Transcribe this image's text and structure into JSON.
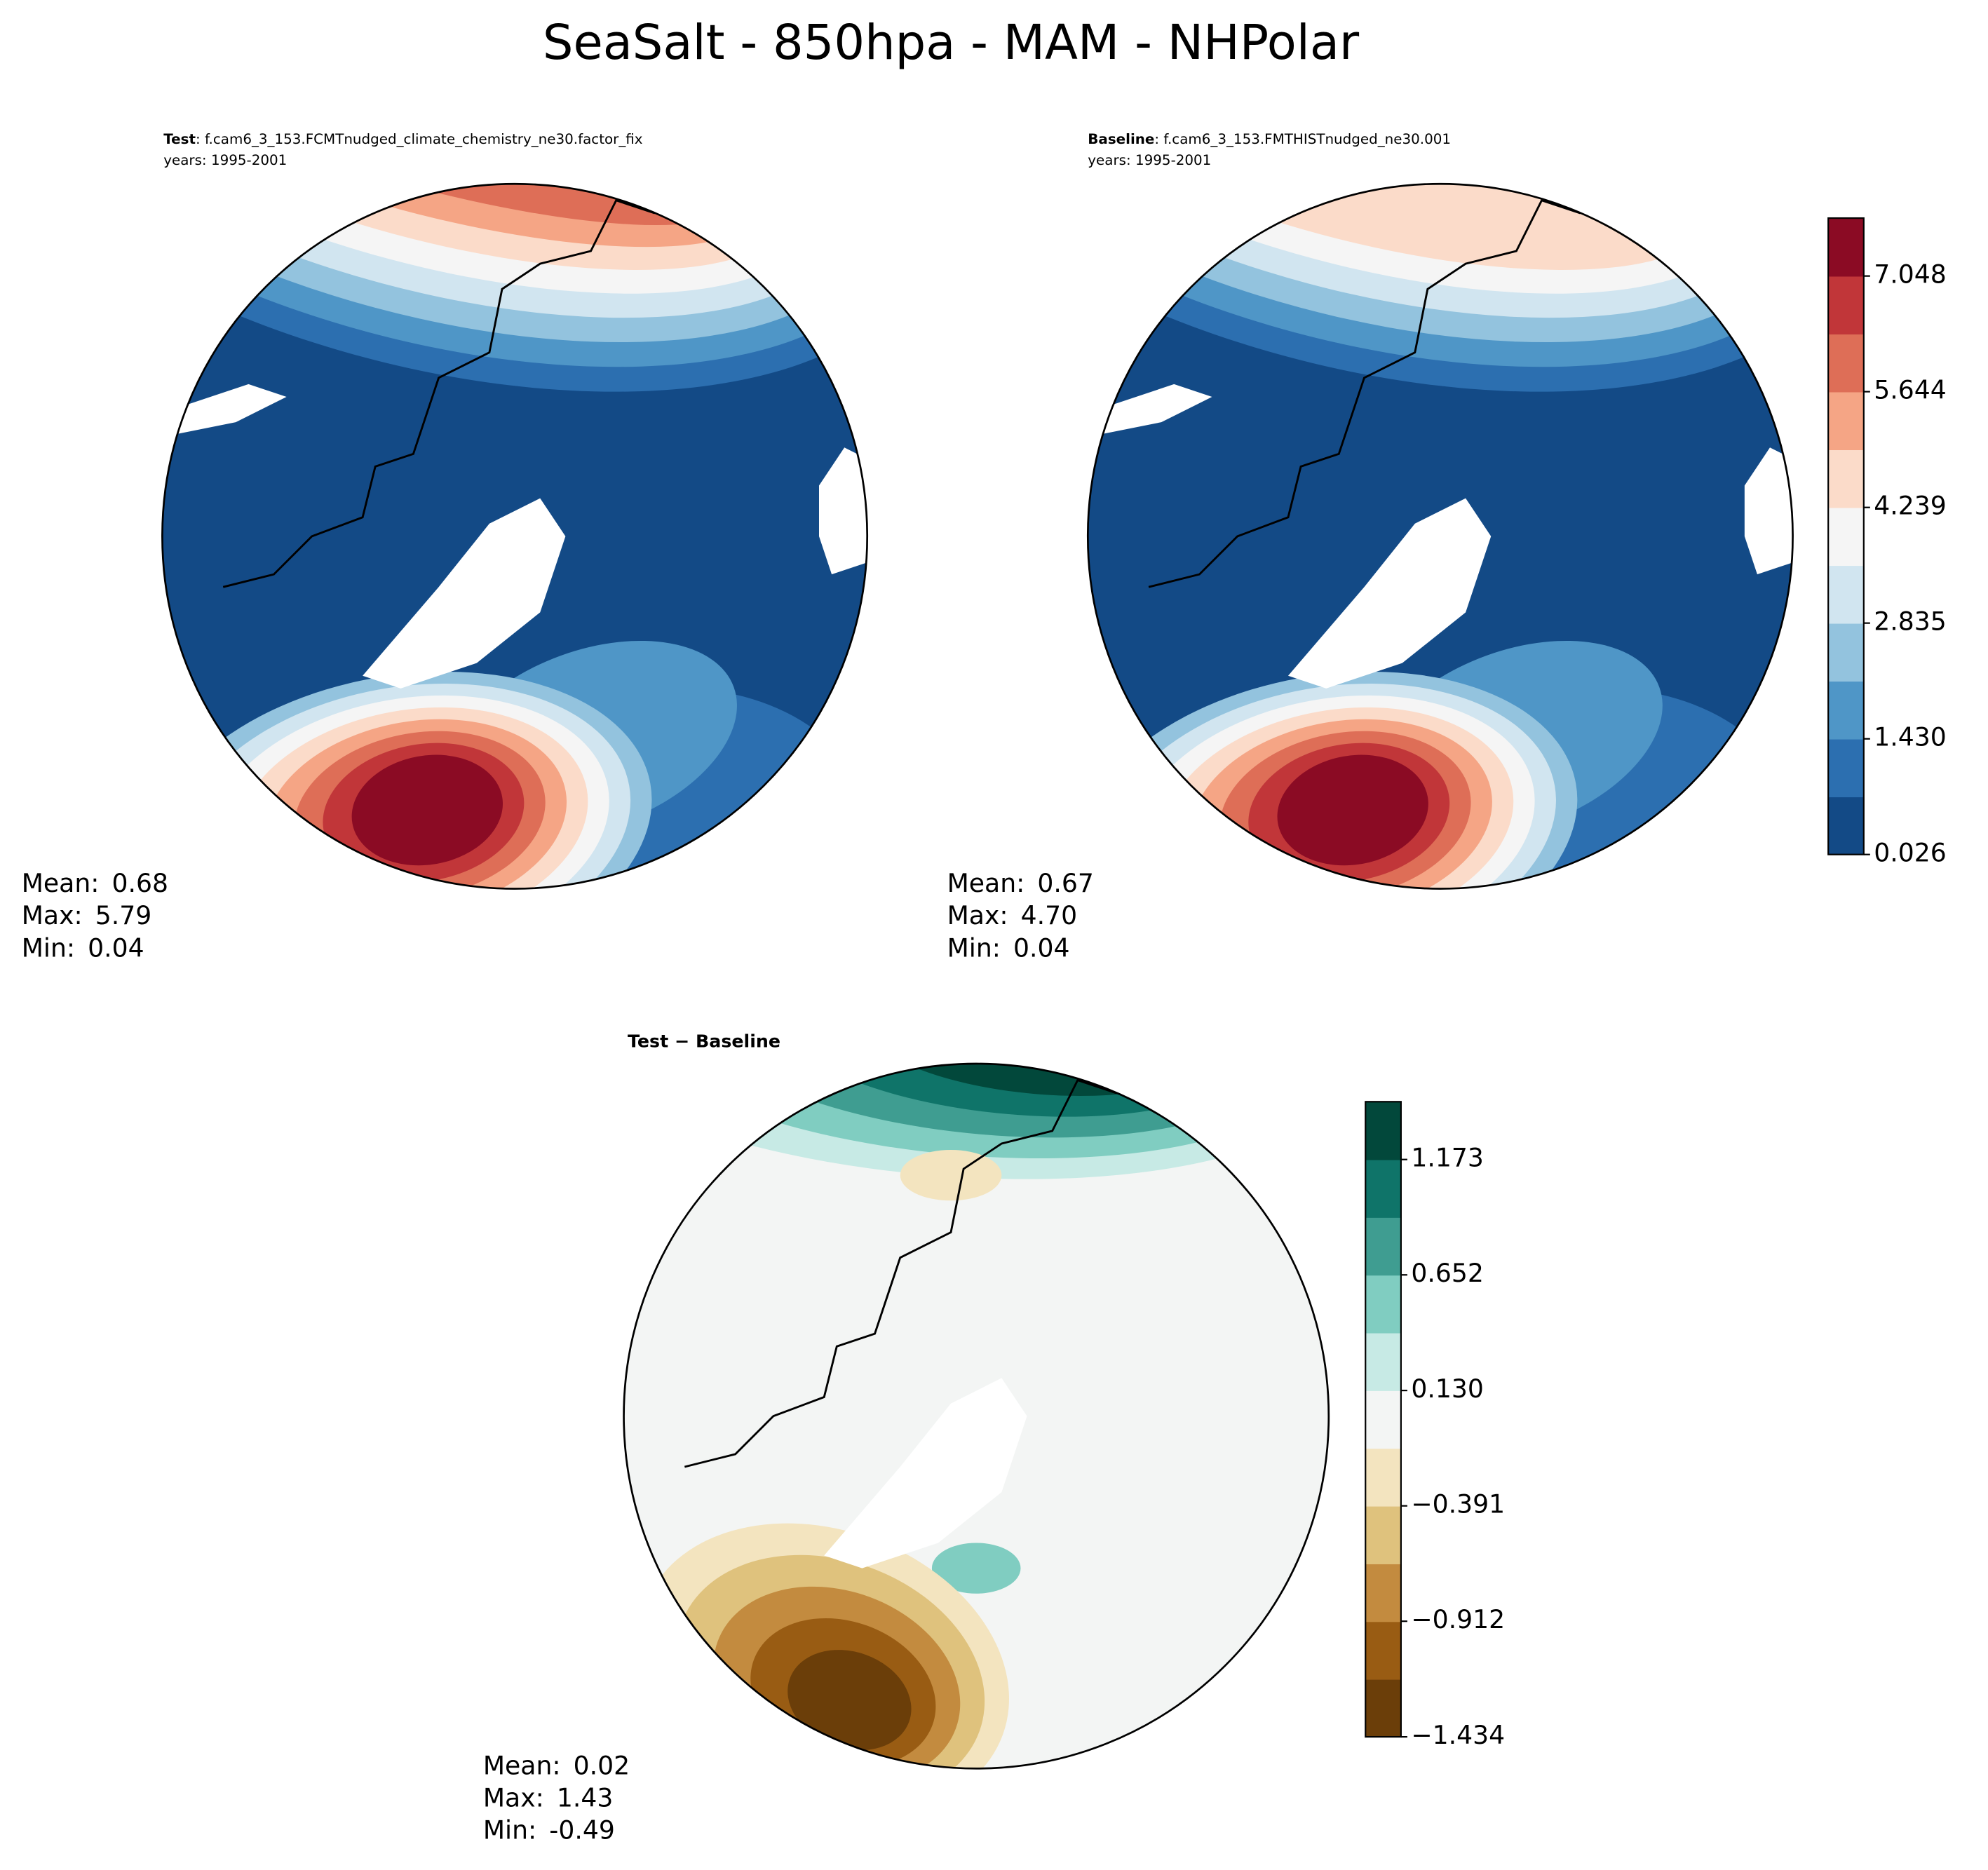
{
  "title": "SeaSalt - 850hpa - MAM - NHPolar",
  "chart_data": [
    {
      "type": "contourf",
      "case_label": "Test",
      "case_name": ": f.cam6_3_153.FCMTnudged_climate_chemistry_ne30.factor_fix",
      "years": "years: 1995-2001",
      "stats": [
        {
          "name": "Mean:",
          "value": 0.68
        },
        {
          "name": "Max:",
          "value": 5.79
        },
        {
          "name": "Min:",
          "value": 0.04
        }
      ]
    },
    {
      "type": "contourf",
      "case_label": "Baseline",
      "case_name": ": f.cam6_3_153.FMTHISTnudged_ne30.001",
      "years": "years: 1995-2001",
      "stats": [
        {
          "name": "Mean:",
          "value": 0.67
        },
        {
          "name": "Max:",
          "value": 4.7,
          "value_label": "4.70"
        },
        {
          "name": "Min:",
          "value": 0.04
        }
      ],
      "clim": [
        0.026,
        7.751
      ],
      "ticks": [
        0.026,
        {
          "value": 1.43,
          "label": "1.430"
        },
        2.835,
        4.239,
        5.644,
        7.048
      ],
      "colors": [
        "#134a86",
        "#2c6fb0",
        "#4f96c7",
        "#93c3de",
        "#d1e5f0",
        "#f5f5f5",
        "#fbdbc9",
        "#f5a585",
        "#de6e57",
        "#c13639",
        "#8b0b24"
      ]
    },
    {
      "type": "contourf",
      "title": "Test − Baseline",
      "stats": [
        {
          "name": "Mean:",
          "value": 0.02
        },
        {
          "name": "Max:",
          "value": 1.43
        },
        {
          "name": "Min:",
          "value": -0.49
        }
      ],
      "clim": [
        -1.434,
        1.434
      ],
      "ticks": [
        {
          "value": -1.434,
          "label": "−1.434"
        },
        {
          "value": -0.912,
          "label": "−0.912"
        },
        {
          "value": -0.391,
          "label": "−0.391"
        },
        {
          "value": 0.13,
          "label": "0.130"
        },
        0.652,
        1.173
      ],
      "colors": [
        "#6b3e09",
        "#995c13",
        "#c38b3f",
        "#dfc27d",
        "#f3e4bf",
        "#f3f5f4",
        "#c7eae5",
        "#80cdc1",
        "#3f9d91",
        "#0f7469",
        "#02483b"
      ]
    }
  ]
}
